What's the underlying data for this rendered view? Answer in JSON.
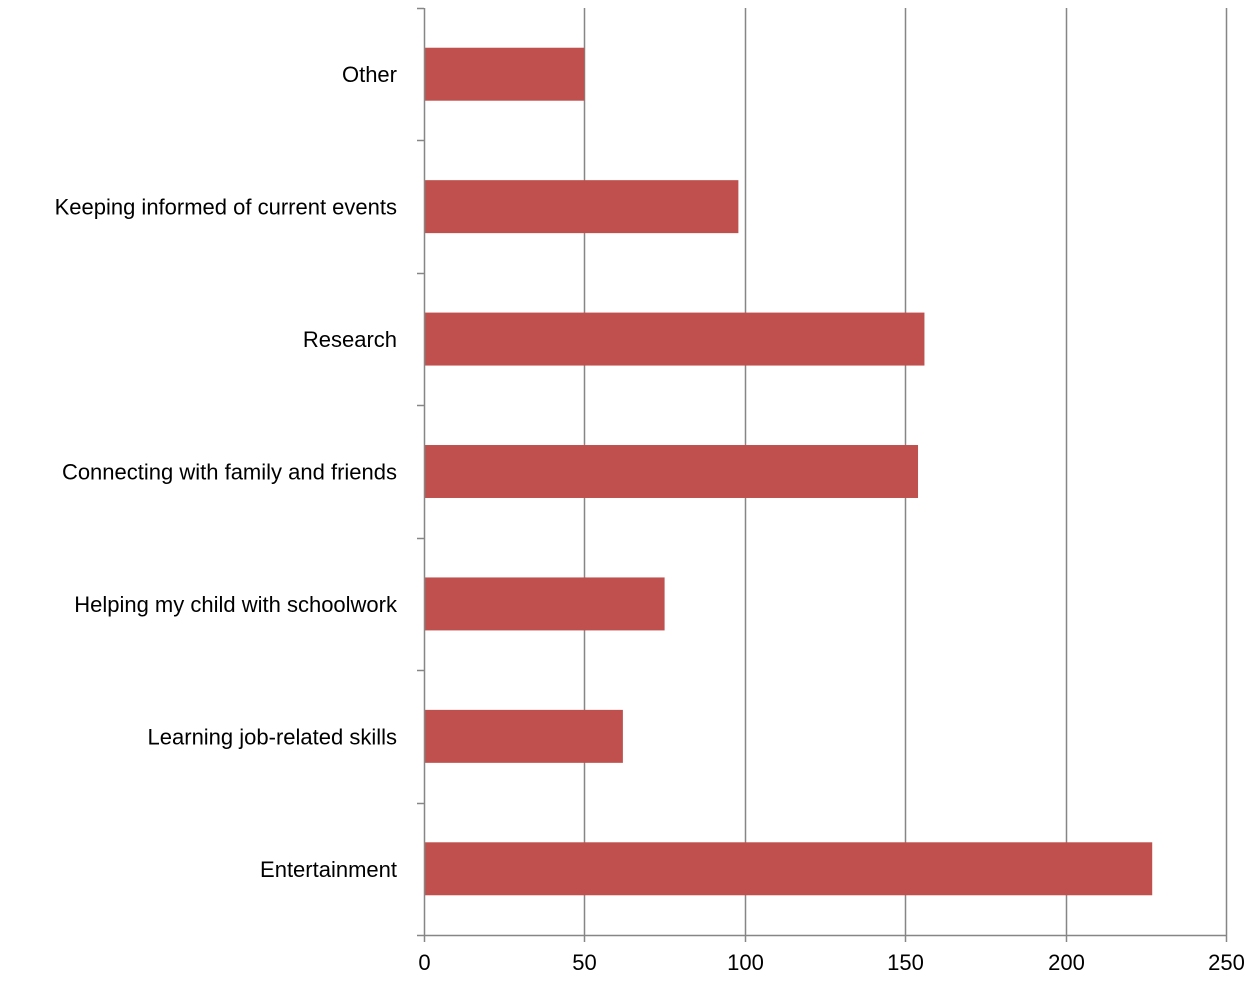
{
  "chart_data": {
    "type": "bar",
    "orientation": "horizontal",
    "categories": [
      "Entertainment",
      "Learning job-related skills",
      "Helping my child with schoolwork",
      "Connecting with family and friends",
      "Research",
      "Keeping informed of current events",
      "Other"
    ],
    "values": [
      227,
      62,
      75,
      154,
      156,
      98,
      50
    ],
    "xlim": [
      0,
      250
    ],
    "x_ticks": [
      0,
      50,
      100,
      150,
      200,
      250
    ],
    "title": "",
    "xlabel": "",
    "ylabel": "",
    "grid": "vertical major gridlines",
    "legend": "none",
    "colors": {
      "bar": "#C0504D",
      "grid": "#868686",
      "axis": "#868686"
    }
  }
}
